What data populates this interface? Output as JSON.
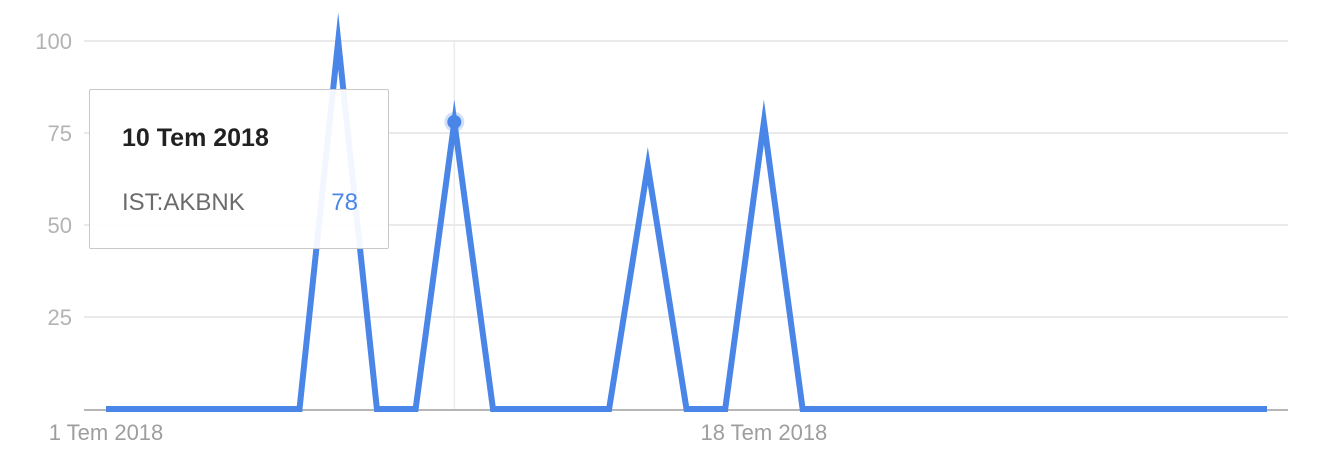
{
  "chart_data": {
    "type": "line",
    "series": [
      {
        "name": "IST:AKBNK",
        "x": [
          "2018-07-01",
          "2018-07-02",
          "2018-07-03",
          "2018-07-04",
          "2018-07-05",
          "2018-07-06",
          "2018-07-07",
          "2018-07-08",
          "2018-07-09",
          "2018-07-10",
          "2018-07-11",
          "2018-07-12",
          "2018-07-13",
          "2018-07-14",
          "2018-07-15",
          "2018-07-16",
          "2018-07-17",
          "2018-07-18",
          "2018-07-19",
          "2018-07-20",
          "2018-07-21",
          "2018-07-22",
          "2018-07-23",
          "2018-07-24",
          "2018-07-25",
          "2018-07-26",
          "2018-07-27",
          "2018-07-28",
          "2018-07-29",
          "2018-07-30",
          "2018-07-31"
        ],
        "values": [
          0,
          0,
          0,
          0,
          0,
          0,
          100,
          0,
          0,
          78,
          0,
          0,
          0,
          0,
          66,
          0,
          0,
          78,
          0,
          0,
          0,
          0,
          0,
          0,
          0,
          0,
          0,
          0,
          0,
          0,
          0
        ],
        "color": "#4a86e8"
      }
    ],
    "yticks": [
      100,
      75,
      50,
      25
    ],
    "ylim": [
      0,
      100
    ],
    "xtick_labels": [
      {
        "date": "2018-07-01",
        "label": "1 Tem 2018"
      },
      {
        "date": "2018-07-18",
        "label": "18 Tem 2018"
      }
    ],
    "grid": true,
    "highlight": {
      "date": "2018-07-10",
      "value": 78
    },
    "tooltip": {
      "date_label": "10 Tem 2018",
      "series_label": "IST:AKBNK",
      "value": "78"
    },
    "colors": {
      "line": "#4a86e8",
      "grid": "#e3e3e3",
      "axis": "#9e9e9e",
      "hover_line": "#ececec"
    }
  }
}
